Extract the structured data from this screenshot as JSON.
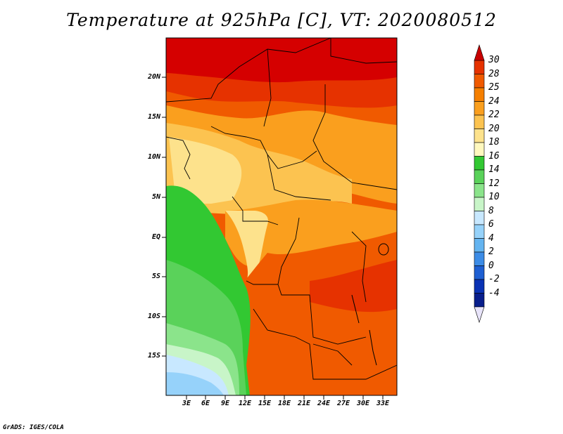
{
  "title": "Temperature at 925hPa [C], VT: 2020080512",
  "credit": "GrADS: IGES/COLA",
  "lat_labels": [
    "20N",
    "15N",
    "10N",
    "5N",
    "EQ",
    "5S",
    "10S",
    "15S"
  ],
  "lon_labels": [
    "3E",
    "6E",
    "9E",
    "12E",
    "15E",
    "18E",
    "21E",
    "24E",
    "27E",
    "30E",
    "33E"
  ],
  "colorbar": {
    "labels": [
      "30",
      "28",
      "25",
      "24",
      "22",
      "20",
      "18",
      "16",
      "14",
      "12",
      "10",
      "8",
      "6",
      "4",
      "2",
      "0",
      "-2",
      "-4"
    ],
    "colors": [
      "#d50000",
      "#e63200",
      "#f05a00",
      "#f57f00",
      "#fa9f1e",
      "#fcc350",
      "#fde28c",
      "#fff8be",
      "#32c832",
      "#5ad25a",
      "#8be48b",
      "#c8f5c8",
      "#c8e8ff",
      "#96d2fa",
      "#64b4f0",
      "#3c8ce6",
      "#1e5fd2",
      "#0a32b4",
      "#081e8c",
      "#050a64"
    ],
    "tip_top": "#c80000",
    "tip_bottom": "#e8e4fa"
  }
}
